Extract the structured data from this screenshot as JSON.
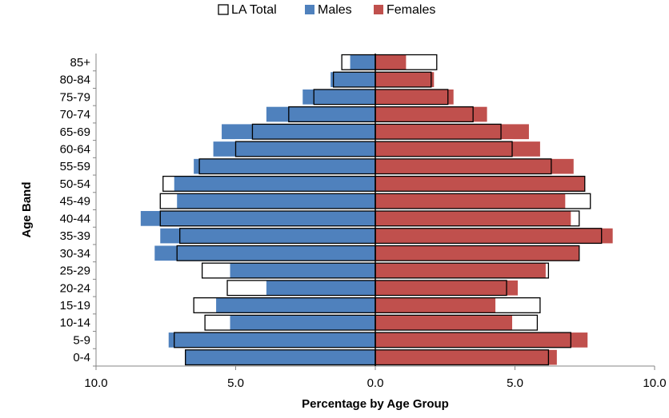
{
  "chart_data": {
    "type": "bar",
    "orientation": "horizontal",
    "layout": "population-pyramid",
    "xlabel": "Percentage by Age Group",
    "ylabel": "Age Band",
    "x_ticks": [
      "10.0",
      "5.0",
      "0.0",
      "5.0",
      "10.0"
    ],
    "xlim": [
      -10,
      10
    ],
    "grid": false,
    "legend_position": "top",
    "categories": [
      "0-4",
      "5-9",
      "10-14",
      "15-19",
      "20-24",
      "25-29",
      "30-34",
      "35-39",
      "40-44",
      "45-49",
      "50-54",
      "55-59",
      "60-64",
      "65-69",
      "70-74",
      "75-79",
      "80-84",
      "85+"
    ],
    "legend": [
      {
        "key": "la_total",
        "label": "LA Total",
        "swatch": "outline"
      },
      {
        "key": "males",
        "label": "Males",
        "swatch": "#4f81bd"
      },
      {
        "key": "females",
        "label": "Females",
        "swatch": "#c0504d"
      }
    ],
    "series": [
      {
        "name": "Males",
        "side": "left",
        "color": "#4f81bd",
        "values": [
          6.8,
          7.4,
          5.2,
          5.7,
          3.9,
          5.2,
          7.9,
          7.7,
          8.4,
          7.1,
          7.2,
          6.5,
          5.8,
          5.5,
          3.9,
          2.6,
          1.6,
          0.9
        ]
      },
      {
        "name": "Females",
        "side": "right",
        "color": "#c0504d",
        "values": [
          6.5,
          7.6,
          4.9,
          4.3,
          5.1,
          6.1,
          7.3,
          8.5,
          7.0,
          6.8,
          7.5,
          7.1,
          5.9,
          5.5,
          4.0,
          2.8,
          2.1,
          1.1
        ]
      },
      {
        "name": "LA Total",
        "style": "outline",
        "values_left": [
          6.8,
          7.2,
          6.1,
          6.5,
          5.3,
          6.2,
          7.1,
          7.0,
          7.7,
          7.7,
          7.6,
          6.3,
          5.0,
          4.4,
          3.1,
          2.2,
          1.5,
          1.2
        ],
        "values_right": [
          6.2,
          7.0,
          5.8,
          5.9,
          4.7,
          6.2,
          7.3,
          8.1,
          7.3,
          7.7,
          7.5,
          6.3,
          4.9,
          4.5,
          3.5,
          2.6,
          2.0,
          2.2
        ]
      }
    ]
  }
}
